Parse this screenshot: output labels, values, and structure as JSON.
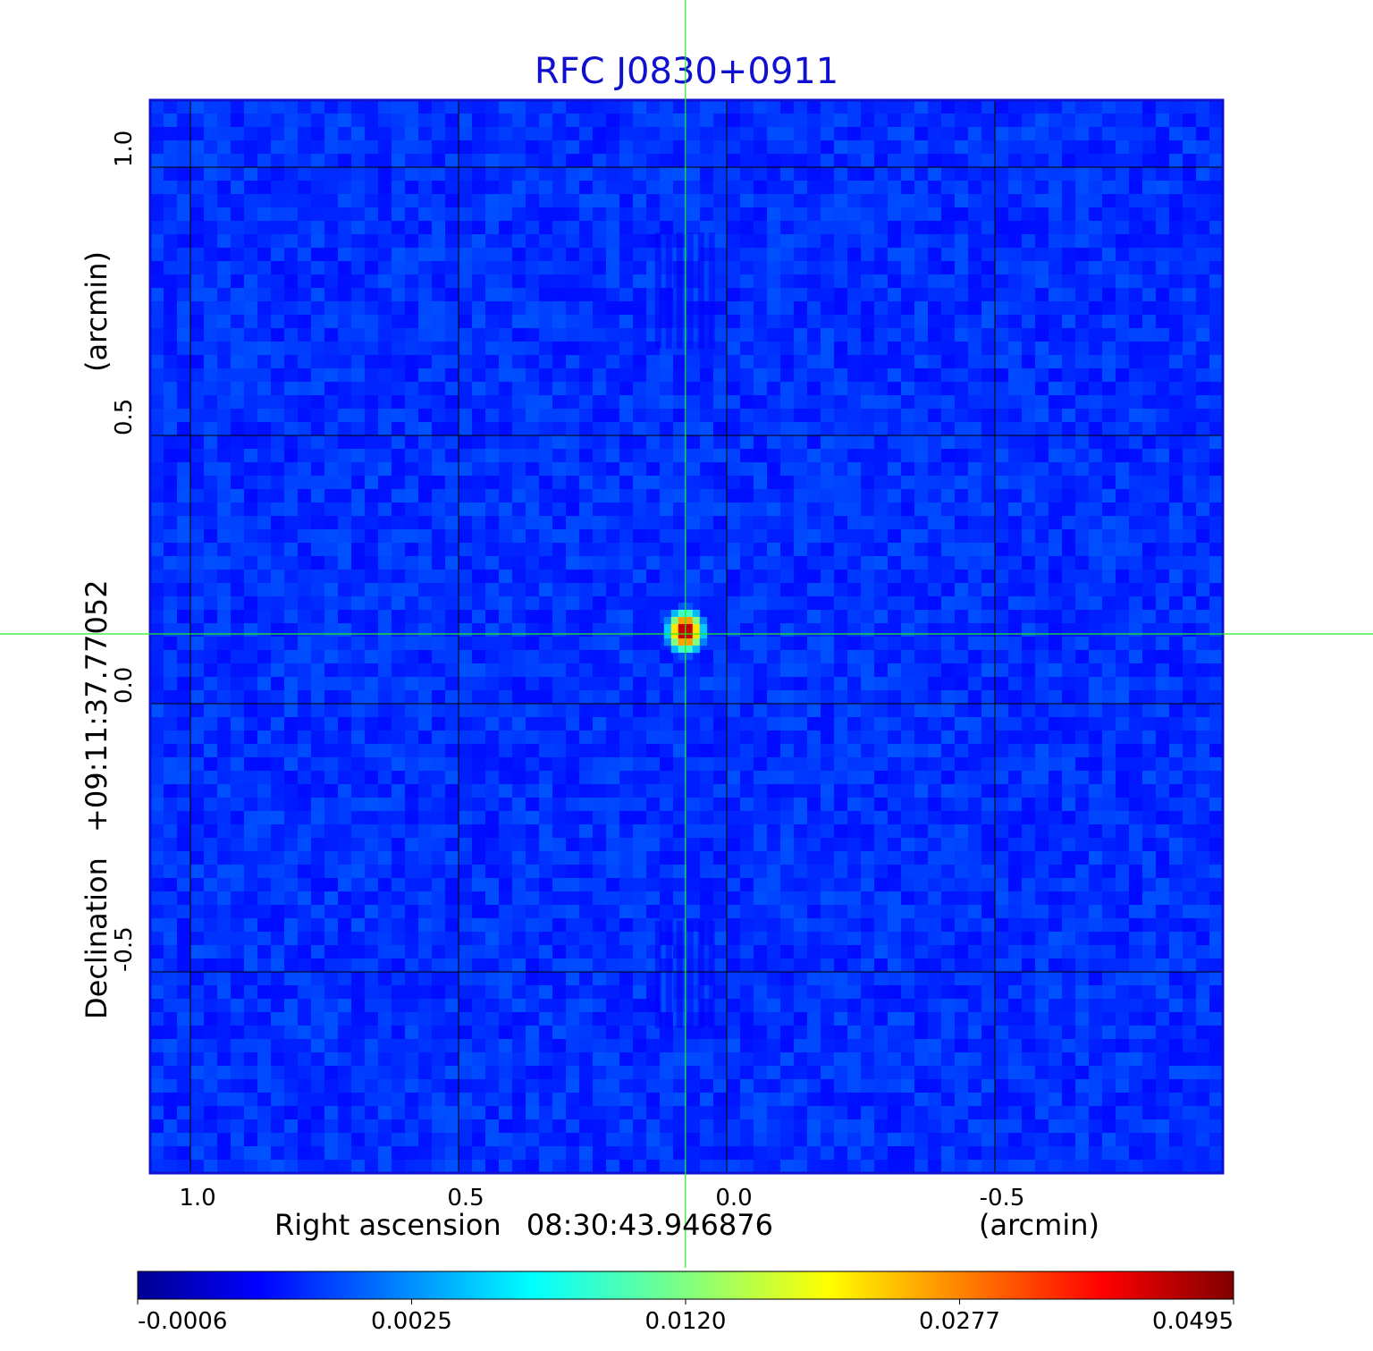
{
  "colors": {
    "title": "#1010d0",
    "background_map": "#1e3cf5",
    "grid": "#000000",
    "crosshair": "#22ee22",
    "frame": "#1010d0"
  },
  "chart_data": {
    "type": "heatmap",
    "title": "RFC J0830+0911",
    "colormap": "jet",
    "xlabel": {
      "prefix": "Right ascension",
      "value": "08:30:43.946876",
      "unit": "(arcmin)"
    },
    "ylabel": {
      "prefix": "Declination",
      "value": "+09:11:37.77052",
      "unit": "(arcmin)"
    },
    "x_ticks": [
      "1.0",
      "0.5",
      "0.0",
      "-0.5"
    ],
    "x_tick_values": [
      1.0,
      0.5,
      0.0,
      -0.5
    ],
    "y_ticks": [
      "1.0",
      "0.5",
      "0.0",
      "-0.5"
    ],
    "y_tick_values": [
      1.0,
      0.5,
      0.0,
      -0.5
    ],
    "xlim": [
      1.075,
      -0.925
    ],
    "ylim": [
      -0.875,
      1.125
    ],
    "grid": true,
    "crosshair": {
      "x": 0.077,
      "y": 0.13
    },
    "source": {
      "x": 0.077,
      "y": 0.135,
      "peak": 0.0495
    },
    "colorbar": {
      "ticks": [
        "-0.0006",
        "0.0025",
        "0.0120",
        "0.0277",
        "0.0495"
      ],
      "min": -0.0006,
      "max": 0.0495
    }
  }
}
